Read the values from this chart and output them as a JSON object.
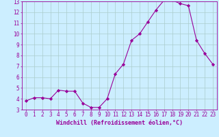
{
  "x": [
    0,
    1,
    2,
    3,
    4,
    5,
    6,
    7,
    8,
    9,
    10,
    11,
    12,
    13,
    14,
    15,
    16,
    17,
    18,
    19,
    20,
    21,
    22,
    23
  ],
  "y": [
    3.8,
    4.1,
    4.1,
    4.0,
    4.8,
    4.7,
    4.7,
    3.6,
    3.2,
    3.2,
    4.0,
    6.3,
    7.2,
    9.4,
    10.0,
    11.1,
    12.2,
    13.1,
    13.1,
    12.8,
    12.6,
    9.4,
    8.2,
    7.2
  ],
  "xlabel": "Windchill (Refroidissement éolien,°C)",
  "xlim": [
    -0.5,
    23.5
  ],
  "ylim": [
    3,
    13
  ],
  "yticks": [
    3,
    4,
    5,
    6,
    7,
    8,
    9,
    10,
    11,
    12,
    13
  ],
  "xticks": [
    0,
    1,
    2,
    3,
    4,
    5,
    6,
    7,
    8,
    9,
    10,
    11,
    12,
    13,
    14,
    15,
    16,
    17,
    18,
    19,
    20,
    21,
    22,
    23
  ],
  "line_color": "#990099",
  "marker": "D",
  "marker_size": 2.2,
  "bg_color": "#cceeff",
  "grid_color": "#aacccc",
  "axis_fontsize": 5.5,
  "tick_fontsize": 5.5,
  "xlabel_fontsize": 6.0
}
